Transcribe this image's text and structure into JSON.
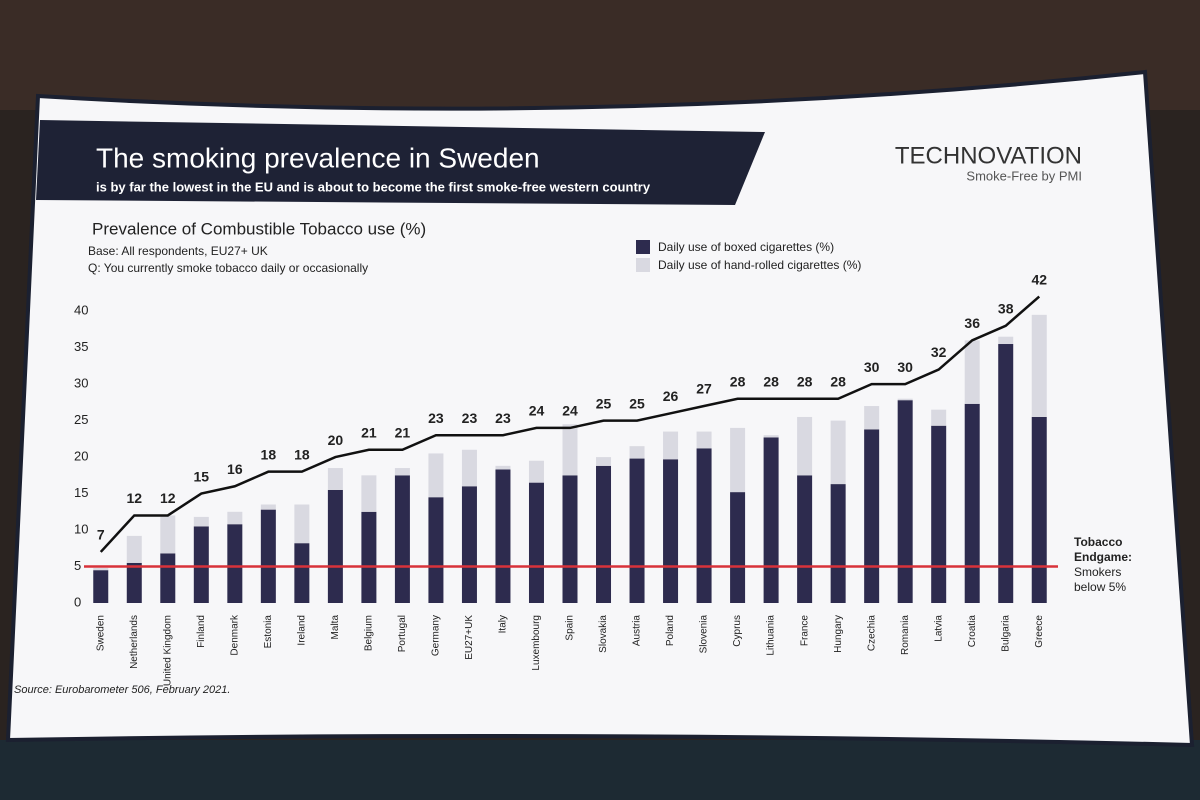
{
  "brand": {
    "name": "TECHNOVATION",
    "tagline": "Smoke-Free by PMI"
  },
  "chart_data": {
    "type": "bar",
    "title": "The smoking prevalence in Sweden",
    "subtitle": "is by far the lowest in the EU and is about to become the first smoke-free western country",
    "chart_title": "Prevalence of Combustible Tobacco use (%)",
    "notes": [
      "Base: All respondents, EU27+ UK",
      "Q: You currently smoke tobacco daily or occasionally"
    ],
    "source": "Source: Eurobarometer 506, February 2021.",
    "categories": [
      "Sweden",
      "Netherlands",
      "United Kingdom",
      "Finland",
      "Denmark",
      "Estonia",
      "Ireland",
      "Malta",
      "Belgium",
      "Portugal",
      "Germany",
      "EU27+UK",
      "Italy",
      "Luxembourg",
      "Spain",
      "Slovakia",
      "Austria",
      "Poland",
      "Slovenia",
      "Cyprus",
      "Lithuania",
      "France",
      "Hungary",
      "Czechia",
      "Romania",
      "Latvia",
      "Croatia",
      "Bulgaria",
      "Greece"
    ],
    "series": [
      {
        "name": "Daily use of boxed cigarettes (%)",
        "color": "#2d2b4e",
        "values": [
          4.5,
          5.5,
          6.8,
          10.5,
          10.8,
          12.8,
          8.2,
          15.5,
          12.5,
          17.5,
          14.5,
          16,
          18.3,
          16.5,
          17.5,
          18.8,
          19.8,
          19.7,
          21.2,
          15.2,
          22.7,
          17.5,
          16.3,
          23.8,
          27.8,
          24.3,
          27.3,
          35.5,
          25.5
        ]
      },
      {
        "name": "Daily use of hand-rolled cigarettes (%)",
        "color": "#d9d9e1",
        "values": [
          0.3,
          3.7,
          5.2,
          1.3,
          1.7,
          0.7,
          5.3,
          3,
          5,
          1,
          6,
          5,
          0.5,
          3,
          7,
          1.2,
          1.7,
          3.8,
          2.3,
          8.8,
          0.3,
          8,
          8.7,
          3.2,
          0.2,
          2.2,
          8.7,
          1,
          14
        ]
      }
    ],
    "totals": {
      "color": "#111111",
      "values": [
        7,
        12,
        12,
        15,
        16,
        18,
        18,
        20,
        21,
        21,
        23,
        23,
        23,
        24,
        24,
        25,
        25,
        26,
        27,
        28,
        28,
        28,
        28,
        30,
        30,
        32,
        36,
        38,
        42
      ]
    },
    "threshold": {
      "value": 5,
      "color": "#d8323a",
      "label": [
        "Tobacco",
        "Endgame:",
        "Smokers",
        "below 5%"
      ]
    },
    "ylim": [
      0,
      44
    ],
    "yticks": [
      0,
      5,
      10,
      15,
      20,
      25,
      30,
      35,
      40
    ],
    "grid": false
  }
}
